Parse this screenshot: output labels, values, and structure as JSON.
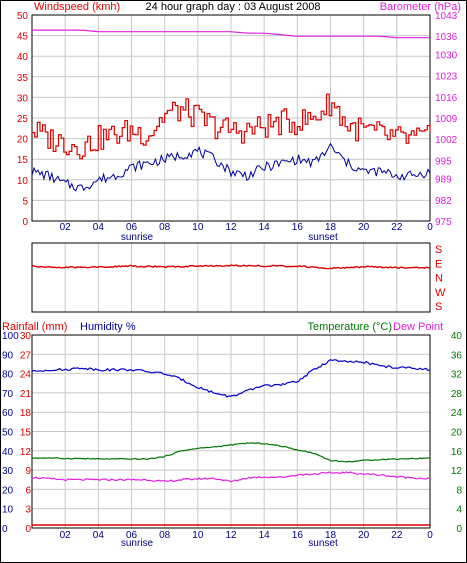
{
  "header": {
    "left_label": "Windspeed (kmh)",
    "title": "24 hour graph day : 03 August 2008",
    "right_label": "Barometer (hPa)"
  },
  "middle": {
    "direction_labels": [
      "S",
      "E",
      "N",
      "W",
      "S"
    ]
  },
  "bottom_header": {
    "rain_label": "Rainfall (mm)",
    "humidity_label": "Humidity %",
    "temp_label": "Temperature (°C)",
    "dew_label": "Dew Point"
  },
  "x_axis": {
    "ticks": [
      "02",
      "04",
      "06",
      "08",
      "10",
      "12",
      "14",
      "16",
      "18",
      "20",
      "22",
      "0"
    ],
    "sunrise": "sunrise",
    "sunset": "sunset"
  },
  "colors": {
    "wind": "#e00000",
    "wind_avg": "#000099",
    "barometer": "#e020e0",
    "humidity": "#0000cc",
    "temperature": "#007700",
    "dewpoint": "#e020e0",
    "rain": "#e00000",
    "grid": "#c8c8c8"
  },
  "chart_data": [
    {
      "type": "line",
      "x_hours": [
        0,
        1,
        2,
        3,
        4,
        5,
        6,
        7,
        8,
        9,
        10,
        11,
        12,
        13,
        14,
        15,
        16,
        17,
        18,
        19,
        20,
        21,
        22,
        23,
        24
      ],
      "series": [
        {
          "axis": "left",
          "values": [
            22,
            20,
            19,
            18,
            20,
            21,
            22,
            21,
            26,
            27,
            25,
            23,
            22,
            22,
            23,
            24,
            24,
            25,
            29,
            23,
            22,
            21,
            20,
            20,
            20
          ]
        },
        {
          "axis": "left",
          "values": [
            12,
            11,
            9,
            8,
            10,
            11,
            13,
            14,
            15,
            16,
            17,
            15,
            12,
            11,
            13,
            14,
            15,
            14,
            18,
            14,
            12,
            12,
            11,
            11,
            12
          ]
        },
        {
          "axis": "right",
          "values": [
            1038,
            1038,
            1038,
            1038,
            1037.5,
            1037.5,
            1037.5,
            1037.5,
            1037.5,
            1037.5,
            1037.5,
            1037.5,
            1037.5,
            1037,
            1037,
            1036.5,
            1036,
            1036,
            1036,
            1036,
            1036,
            1036,
            1035.5,
            1035.5,
            1035.5
          ]
        }
      ],
      "left_axis": {
        "ylim": [
          0,
          50
        ],
        "ticks": [
          0,
          5,
          10,
          15,
          20,
          25,
          30,
          35,
          40,
          45,
          50
        ]
      },
      "right_axis": {
        "ylim": [
          975,
          1043
        ],
        "ticks": [
          975,
          982,
          989,
          995,
          1002,
          1009,
          1016,
          1023,
          1030,
          1036,
          1043
        ]
      }
    },
    {
      "type": "line",
      "x_hours": [
        0,
        2,
        4,
        6,
        8,
        10,
        12,
        14,
        16,
        18,
        20,
        22,
        24
      ],
      "series": [
        {
          "values": [
            1.2,
            1.3,
            1.25,
            1.2,
            1.25,
            1.2,
            1.15,
            1.2,
            1.2,
            1.35,
            1.25,
            1.3,
            1.3
          ]
        }
      ],
      "left_axis": {
        "ylim": [
          0,
          4
        ],
        "ticks": [
          "S",
          "E",
          "N",
          "W",
          "S"
        ]
      }
    },
    {
      "type": "line",
      "x_hours": [
        0,
        1,
        2,
        3,
        4,
        5,
        6,
        7,
        8,
        9,
        10,
        11,
        12,
        13,
        14,
        15,
        16,
        17,
        18,
        19,
        20,
        21,
        22,
        23,
        24
      ],
      "series": [
        {
          "axis": "rain",
          "values": [
            0,
            0,
            0,
            0,
            0,
            0,
            0,
            0,
            0,
            0,
            0,
            0,
            0,
            0,
            0,
            0,
            0,
            0,
            0,
            0,
            0,
            0,
            0,
            0,
            0
          ]
        },
        {
          "axis": "humidity",
          "values": [
            81,
            82,
            82,
            83,
            82,
            82,
            82,
            81,
            80,
            77,
            73,
            70,
            68,
            71,
            74,
            74,
            76,
            82,
            87,
            86,
            86,
            84,
            83,
            83,
            82
          ]
        },
        {
          "axis": "temperature",
          "values": [
            14.5,
            14.5,
            14.4,
            14.4,
            14.3,
            14.3,
            14.3,
            14.3,
            14.8,
            16,
            16.5,
            16.8,
            17.2,
            17.6,
            17.5,
            17,
            16.2,
            15.5,
            14,
            13.7,
            14,
            14.2,
            14.3,
            14.4,
            14.5
          ]
        },
        {
          "axis": "temperature",
          "values": [
            10.5,
            10.2,
            10,
            10,
            10,
            10,
            10,
            10,
            9.6,
            10,
            10.2,
            10.3,
            9.6,
            10.4,
            10.6,
            10.5,
            11,
            11.2,
            11.4,
            11.5,
            11.2,
            11,
            10.6,
            10.4,
            10.2
          ]
        }
      ],
      "rain_axis": {
        "ylim": [
          0,
          30
        ],
        "ticks": [
          0,
          3,
          6,
          9,
          12,
          15,
          18,
          21,
          24,
          27,
          30
        ]
      },
      "humidity_axis": {
        "ylim": [
          0,
          100
        ],
        "ticks": [
          0,
          10,
          20,
          30,
          40,
          50,
          60,
          70,
          80,
          90,
          100
        ]
      },
      "temperature_axis": {
        "ylim": [
          0,
          40
        ],
        "ticks": [
          0,
          4,
          8,
          12,
          16,
          20,
          24,
          28,
          32,
          36,
          40
        ]
      }
    }
  ]
}
